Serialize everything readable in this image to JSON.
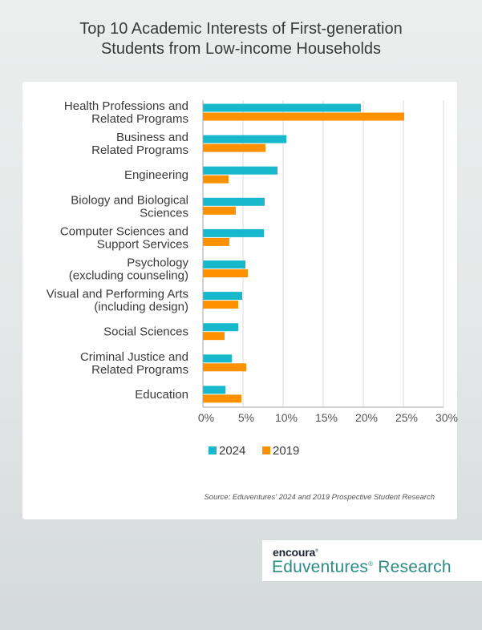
{
  "chart_data": {
    "type": "bar",
    "orientation": "horizontal",
    "title": [
      "Top 10 Academic Interests of First-generation",
      "Students from Low-income Households"
    ],
    "categories": [
      [
        "Health Professions and",
        "Related Programs"
      ],
      [
        "Business and",
        "Related Programs"
      ],
      [
        "Engineering"
      ],
      [
        "Biology and Biological",
        "Sciences"
      ],
      [
        "Computer Sciences and",
        "Support Services"
      ],
      [
        "Psychology",
        "(excluding counseling)"
      ],
      [
        "Visual and Performing Arts",
        "(including design)"
      ],
      [
        "Social Sciences"
      ],
      [
        "Criminal Justice and",
        "Related Programs"
      ],
      [
        "Education"
      ]
    ],
    "series": [
      {
        "name": "2024",
        "color": "#18b8cc",
        "values": [
          19.7,
          10.4,
          9.3,
          7.7,
          7.6,
          5.3,
          4.9,
          4.4,
          3.6,
          2.8
        ]
      },
      {
        "name": "2019",
        "color": "#ff9100",
        "values": [
          25.1,
          7.8,
          3.2,
          4.1,
          3.3,
          5.6,
          4.4,
          2.7,
          5.4,
          4.8
        ]
      }
    ],
    "xlim": [
      0,
      30
    ],
    "xticks": [
      "0%",
      "5%",
      "10%",
      "15%",
      "20%",
      "25%",
      "30%"
    ],
    "grid": true,
    "legend": "bottom"
  },
  "source": "Source: Eduventures' 2024 and 2019 Prospective Student Research",
  "brand": {
    "top": "encoura",
    "bottom": "Eduventures",
    "bottom_suffix": "Research"
  }
}
